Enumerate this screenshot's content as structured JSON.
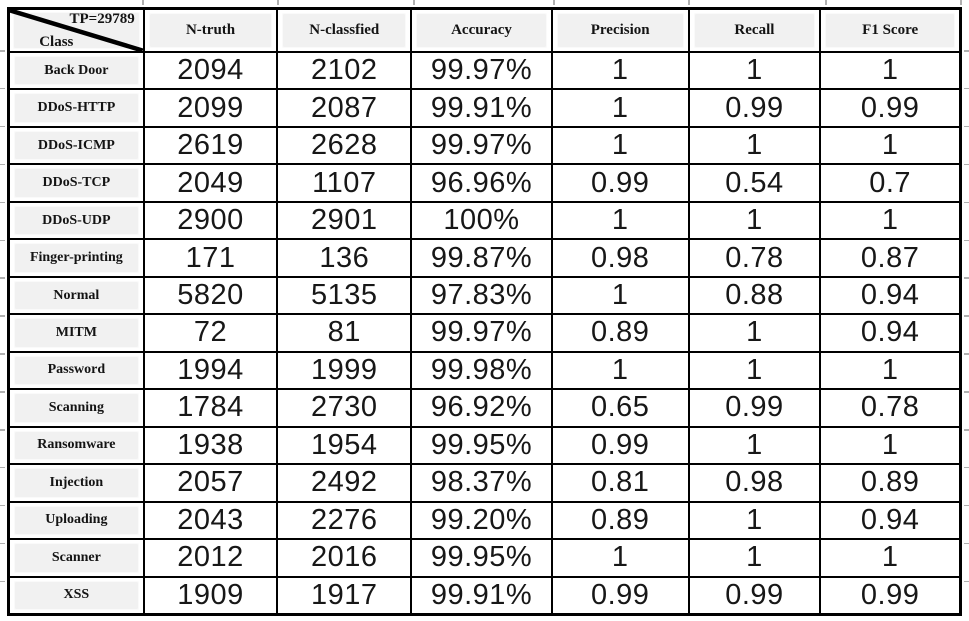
{
  "table": {
    "corner": {
      "tp_label": "TP=29789",
      "class_label": "Class"
    },
    "columns": [
      "N-truth",
      "N-classfied",
      "Accuracy",
      "Precision",
      "Recall",
      "F1 Score"
    ],
    "rows": [
      {
        "cls": "Back Door",
        "truth": "2094",
        "classified": "2102",
        "acc": "99.97%",
        "prec": "1",
        "rec": "1",
        "f1": "1"
      },
      {
        "cls": "DDoS-HTTP",
        "truth": "2099",
        "classified": "2087",
        "acc": "99.91%",
        "prec": "1",
        "rec": "0.99",
        "f1": "0.99"
      },
      {
        "cls": "DDoS-ICMP",
        "truth": "2619",
        "classified": "2628",
        "acc": "99.97%",
        "prec": "1",
        "rec": "1",
        "f1": "1"
      },
      {
        "cls": "DDoS-TCP",
        "truth": "2049",
        "classified": "1107",
        "acc": "96.96%",
        "prec": "0.99",
        "rec": "0.54",
        "f1": "0.7"
      },
      {
        "cls": "DDoS-UDP",
        "truth": "2900",
        "classified": "2901",
        "acc": "100%",
        "prec": "1",
        "rec": "1",
        "f1": "1"
      },
      {
        "cls": "Finger-printing",
        "truth": "171",
        "classified": "136",
        "acc": "99.87%",
        "prec": "0.98",
        "rec": "0.78",
        "f1": "0.87"
      },
      {
        "cls": "Normal",
        "truth": "5820",
        "classified": "5135",
        "acc": "97.83%",
        "prec": "1",
        "rec": "0.88",
        "f1": "0.94"
      },
      {
        "cls": "MITM",
        "truth": "72",
        "classified": "81",
        "acc": "99.97%",
        "prec": "0.89",
        "rec": "1",
        "f1": "0.94"
      },
      {
        "cls": "Password",
        "truth": "1994",
        "classified": "1999",
        "acc": "99.98%",
        "prec": "1",
        "rec": "1",
        "f1": "1"
      },
      {
        "cls": "Scanning",
        "truth": "1784",
        "classified": "2730",
        "acc": "96.92%",
        "prec": "0.65",
        "rec": "0.99",
        "f1": "0.78"
      },
      {
        "cls": "Ransomware",
        "truth": "1938",
        "classified": "1954",
        "acc": "99.95%",
        "prec": "0.99",
        "rec": "1",
        "f1": "1"
      },
      {
        "cls": "Injection",
        "truth": "2057",
        "classified": "2492",
        "acc": "98.37%",
        "prec": "0.81",
        "rec": "0.98",
        "f1": "0.89"
      },
      {
        "cls": "Uploading",
        "truth": "2043",
        "classified": "2276",
        "acc": "99.20%",
        "prec": "0.89",
        "rec": "1",
        "f1": "0.94"
      },
      {
        "cls": "Scanner",
        "truth": "2012",
        "classified": "2016",
        "acc": "99.95%",
        "prec": "1",
        "rec": "1",
        "f1": "1"
      },
      {
        "cls": "XSS",
        "truth": "1909",
        "classified": "1917",
        "acc": "99.91%",
        "prec": "0.99",
        "rec": "0.99",
        "f1": "0.99"
      }
    ],
    "colors": {
      "border": "#000000",
      "header_fill": "#f1f1f1",
      "cell_fill": "#ffffff",
      "text": "#171717"
    }
  }
}
